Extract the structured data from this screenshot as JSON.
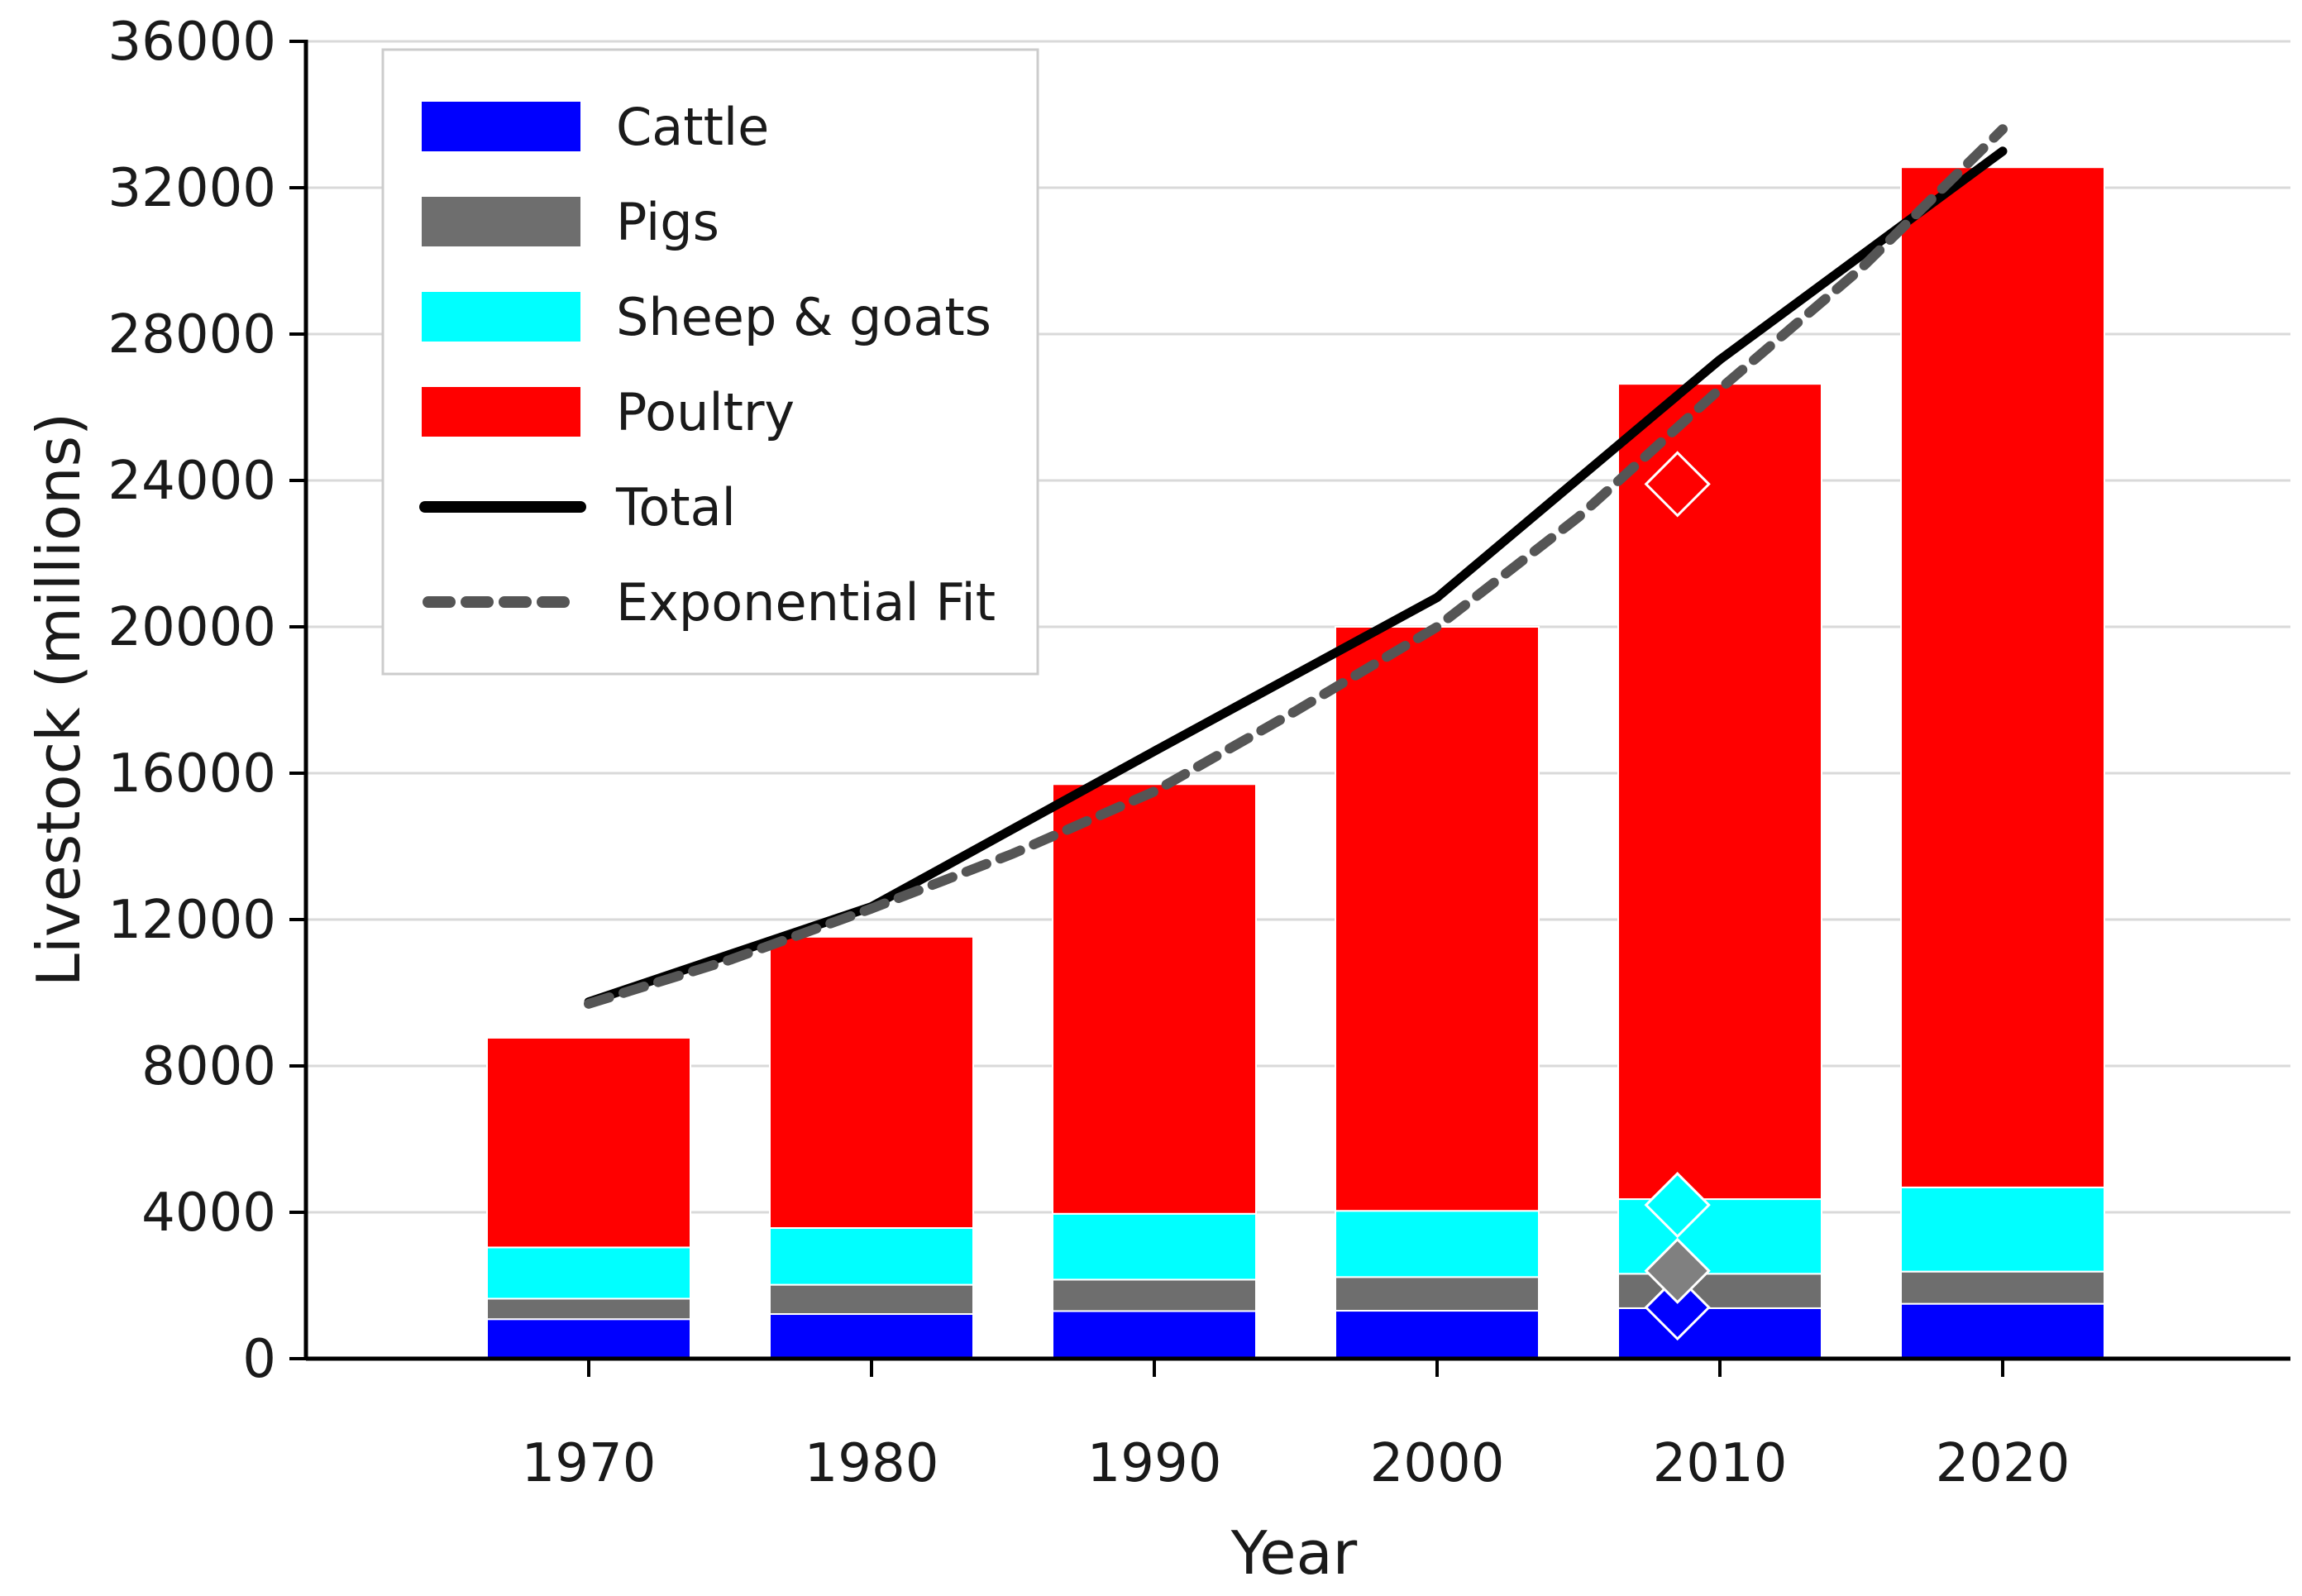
{
  "chart_data": {
    "type": "bar",
    "stacked": true,
    "title": "",
    "xlabel": "Year",
    "ylabel": "Livestock (millions)",
    "ylim": [
      0,
      36000
    ],
    "yticks": [
      0,
      4000,
      8000,
      12000,
      16000,
      20000,
      24000,
      28000,
      32000,
      36000
    ],
    "grid": "horizontal",
    "legend_position": "top-left",
    "categories": [
      "1970",
      "1980",
      "1990",
      "2000",
      "2010",
      "2020"
    ],
    "series": [
      {
        "name": "Cattle",
        "color": "#0000ff",
        "values": [
          1080,
          1220,
          1300,
          1310,
          1380,
          1500
        ]
      },
      {
        "name": "Pigs",
        "color": "#6e6e6e",
        "values": [
          560,
          800,
          860,
          920,
          940,
          880
        ]
      },
      {
        "name": "Sheep & goats",
        "color": "#00ffff",
        "values": [
          1400,
          1550,
          1800,
          1810,
          2040,
          2300
        ]
      },
      {
        "name": "Poultry",
        "color": "#ff0000",
        "values": [
          5730,
          7960,
          11740,
          15960,
          22280,
          27880
        ]
      }
    ],
    "lines": [
      {
        "name": "Total",
        "color": "#000000",
        "style": "solid",
        "x": [
          1970,
          1980,
          1990,
          2000,
          2010,
          2020
        ],
        "values": [
          9750,
          12350,
          16600,
          20800,
          27300,
          33000
        ]
      },
      {
        "name": "Exponential Fit",
        "color": "#555555",
        "style": "dashed",
        "x": [
          1970,
          1975,
          1980,
          1985,
          1990,
          1995,
          2000,
          2005,
          2010,
          2015,
          2020
        ],
        "values": [
          9700,
          10900,
          12300,
          13800,
          15500,
          17700,
          20000,
          23000,
          26500,
          29800,
          33600
        ]
      }
    ],
    "markers": [
      {
        "series": "Cattle",
        "x": 2008.5,
        "value": 1400,
        "color": "#0000ff"
      },
      {
        "series": "Pigs",
        "x": 2008.5,
        "value": 2400,
        "color": "#808080"
      },
      {
        "series": "Sheep & goats",
        "x": 2008.5,
        "value": 4200,
        "color": "#00ffff"
      },
      {
        "series": "Poultry",
        "x": 2008.5,
        "value": 23900,
        "color": "#ff0000"
      }
    ]
  }
}
